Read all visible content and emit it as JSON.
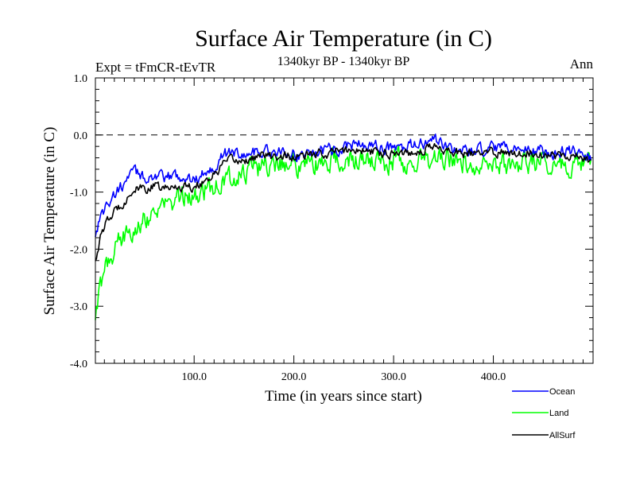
{
  "chart_data": {
    "type": "line",
    "title": "Surface Air Temperature (in C)",
    "subtitle": "1340kyr BP - 1340kyr BP",
    "left_label": "Expt = tFmCR-tEvTR",
    "right_label": "Ann",
    "xlabel": "Time (in years since start)",
    "ylabel": "Surface Air Temperature (in C)",
    "xlim": [
      1,
      500
    ],
    "ylim": [
      -4.0,
      1.0
    ],
    "xticks": [
      100,
      200,
      300,
      400
    ],
    "xtick_labels": [
      "100.0",
      "200.0",
      "300.0",
      "400.0"
    ],
    "yticks": [
      1.0,
      0.0,
      -1.0,
      -2.0,
      -3.0,
      -4.0
    ],
    "ytick_labels": [
      "1.0",
      "0.0",
      "-1.0",
      "-2.0",
      "-3.0",
      "-4.0"
    ],
    "reference_line": 0.0,
    "legend_position": "bottom-right",
    "series": [
      {
        "name": "Ocean",
        "color": "#0000ff",
        "values": [
          [
            1,
            -1.75
          ],
          [
            5,
            -1.45
          ],
          [
            10,
            -1.3
          ],
          [
            20,
            -1.05
          ],
          [
            30,
            -0.85
          ],
          [
            40,
            -0.65
          ],
          [
            50,
            -0.75
          ],
          [
            60,
            -0.7
          ],
          [
            70,
            -0.8
          ],
          [
            80,
            -0.7
          ],
          [
            90,
            -0.75
          ],
          [
            100,
            -0.8
          ],
          [
            110,
            -0.65
          ],
          [
            120,
            -0.55
          ],
          [
            130,
            -0.35
          ],
          [
            140,
            -0.3
          ],
          [
            150,
            -0.35
          ],
          [
            160,
            -0.3
          ],
          [
            170,
            -0.25
          ],
          [
            180,
            -0.35
          ],
          [
            190,
            -0.3
          ],
          [
            200,
            -0.35
          ],
          [
            220,
            -0.3
          ],
          [
            240,
            -0.25
          ],
          [
            260,
            -0.15
          ],
          [
            280,
            -0.2
          ],
          [
            300,
            -0.25
          ],
          [
            320,
            -0.2
          ],
          [
            340,
            -0.1
          ],
          [
            360,
            -0.25
          ],
          [
            380,
            -0.3
          ],
          [
            400,
            -0.25
          ],
          [
            420,
            -0.25
          ],
          [
            440,
            -0.25
          ],
          [
            460,
            -0.3
          ],
          [
            480,
            -0.3
          ],
          [
            495,
            -0.4
          ]
        ]
      },
      {
        "name": "Land",
        "color": "#00ff00",
        "values": [
          [
            1,
            -3.2
          ],
          [
            5,
            -2.8
          ],
          [
            10,
            -2.4
          ],
          [
            20,
            -2.0
          ],
          [
            30,
            -1.8
          ],
          [
            40,
            -1.55
          ],
          [
            50,
            -1.45
          ],
          [
            60,
            -1.35
          ],
          [
            70,
            -1.25
          ],
          [
            80,
            -1.2
          ],
          [
            90,
            -1.1
          ],
          [
            100,
            -1.05
          ],
          [
            110,
            -0.95
          ],
          [
            120,
            -0.9
          ],
          [
            130,
            -0.8
          ],
          [
            140,
            -0.75
          ],
          [
            150,
            -0.65
          ],
          [
            160,
            -0.6
          ],
          [
            170,
            -0.55
          ],
          [
            180,
            -0.5
          ],
          [
            190,
            -0.45
          ],
          [
            200,
            -0.55
          ],
          [
            220,
            -0.5
          ],
          [
            240,
            -0.45
          ],
          [
            260,
            -0.45
          ],
          [
            280,
            -0.5
          ],
          [
            300,
            -0.45
          ],
          [
            320,
            -0.5
          ],
          [
            340,
            -0.4
          ],
          [
            360,
            -0.45
          ],
          [
            380,
            -0.55
          ],
          [
            400,
            -0.5
          ],
          [
            420,
            -0.5
          ],
          [
            440,
            -0.45
          ],
          [
            460,
            -0.5
          ],
          [
            480,
            -0.5
          ],
          [
            495,
            -0.55
          ]
        ]
      },
      {
        "name": "AllSurf",
        "color": "#000000",
        "values": [
          [
            1,
            -2.2
          ],
          [
            5,
            -1.85
          ],
          [
            10,
            -1.6
          ],
          [
            20,
            -1.35
          ],
          [
            30,
            -1.15
          ],
          [
            40,
            -0.95
          ],
          [
            50,
            -0.95
          ],
          [
            60,
            -0.9
          ],
          [
            70,
            -0.95
          ],
          [
            80,
            -0.9
          ],
          [
            90,
            -0.9
          ],
          [
            100,
            -0.9
          ],
          [
            110,
            -0.8
          ],
          [
            120,
            -0.7
          ],
          [
            130,
            -0.5
          ],
          [
            140,
            -0.45
          ],
          [
            150,
            -0.45
          ],
          [
            160,
            -0.4
          ],
          [
            170,
            -0.35
          ],
          [
            180,
            -0.4
          ],
          [
            190,
            -0.35
          ],
          [
            200,
            -0.4
          ],
          [
            220,
            -0.35
          ],
          [
            240,
            -0.3
          ],
          [
            260,
            -0.25
          ],
          [
            280,
            -0.3
          ],
          [
            300,
            -0.3
          ],
          [
            320,
            -0.3
          ],
          [
            340,
            -0.2
          ],
          [
            360,
            -0.3
          ],
          [
            380,
            -0.35
          ],
          [
            400,
            -0.3
          ],
          [
            420,
            -0.3
          ],
          [
            440,
            -0.3
          ],
          [
            460,
            -0.35
          ],
          [
            480,
            -0.35
          ],
          [
            495,
            -0.45
          ]
        ]
      }
    ]
  }
}
